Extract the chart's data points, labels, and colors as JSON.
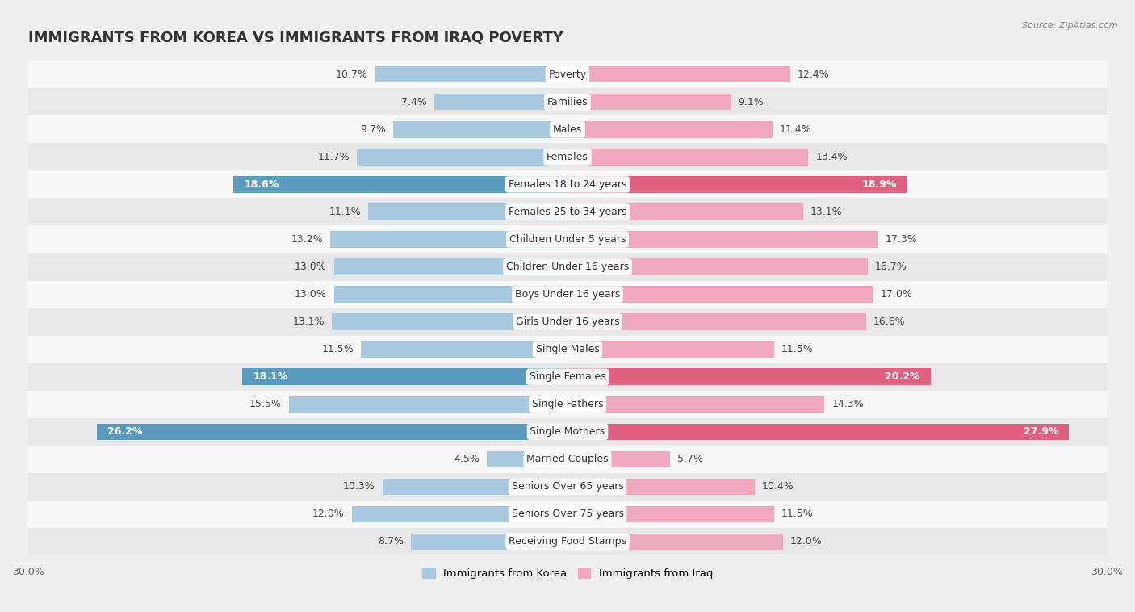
{
  "title": "IMMIGRANTS FROM KOREA VS IMMIGRANTS FROM IRAQ POVERTY",
  "source": "Source: ZipAtlas.com",
  "categories": [
    "Poverty",
    "Families",
    "Males",
    "Females",
    "Females 18 to 24 years",
    "Females 25 to 34 years",
    "Children Under 5 years",
    "Children Under 16 years",
    "Boys Under 16 years",
    "Girls Under 16 years",
    "Single Males",
    "Single Females",
    "Single Fathers",
    "Single Mothers",
    "Married Couples",
    "Seniors Over 65 years",
    "Seniors Over 75 years",
    "Receiving Food Stamps"
  ],
  "korea_values": [
    10.7,
    7.4,
    9.7,
    11.7,
    18.6,
    11.1,
    13.2,
    13.0,
    13.0,
    13.1,
    11.5,
    18.1,
    15.5,
    26.2,
    4.5,
    10.3,
    12.0,
    8.7
  ],
  "iraq_values": [
    12.4,
    9.1,
    11.4,
    13.4,
    18.9,
    13.1,
    17.3,
    16.7,
    17.0,
    16.6,
    11.5,
    20.2,
    14.3,
    27.9,
    5.7,
    10.4,
    11.5,
    12.0
  ],
  "korea_color": "#a8c8e0",
  "iraq_color": "#f0a8bc",
  "korea_highlight_color": "#5a9abf",
  "iraq_highlight_color": "#e06080",
  "highlight_rows": [
    4,
    11,
    13
  ],
  "xlim": 30.0,
  "chart_bg": "#f0f0f0",
  "row_bg_light": "#f8f8f8",
  "row_bg_dark": "#e8e8e8",
  "legend_korea": "Immigrants from Korea",
  "legend_iraq": "Immigrants from Iraq",
  "bar_height": 0.6,
  "label_fontsize": 9,
  "value_fontsize": 9,
  "title_fontsize": 13
}
